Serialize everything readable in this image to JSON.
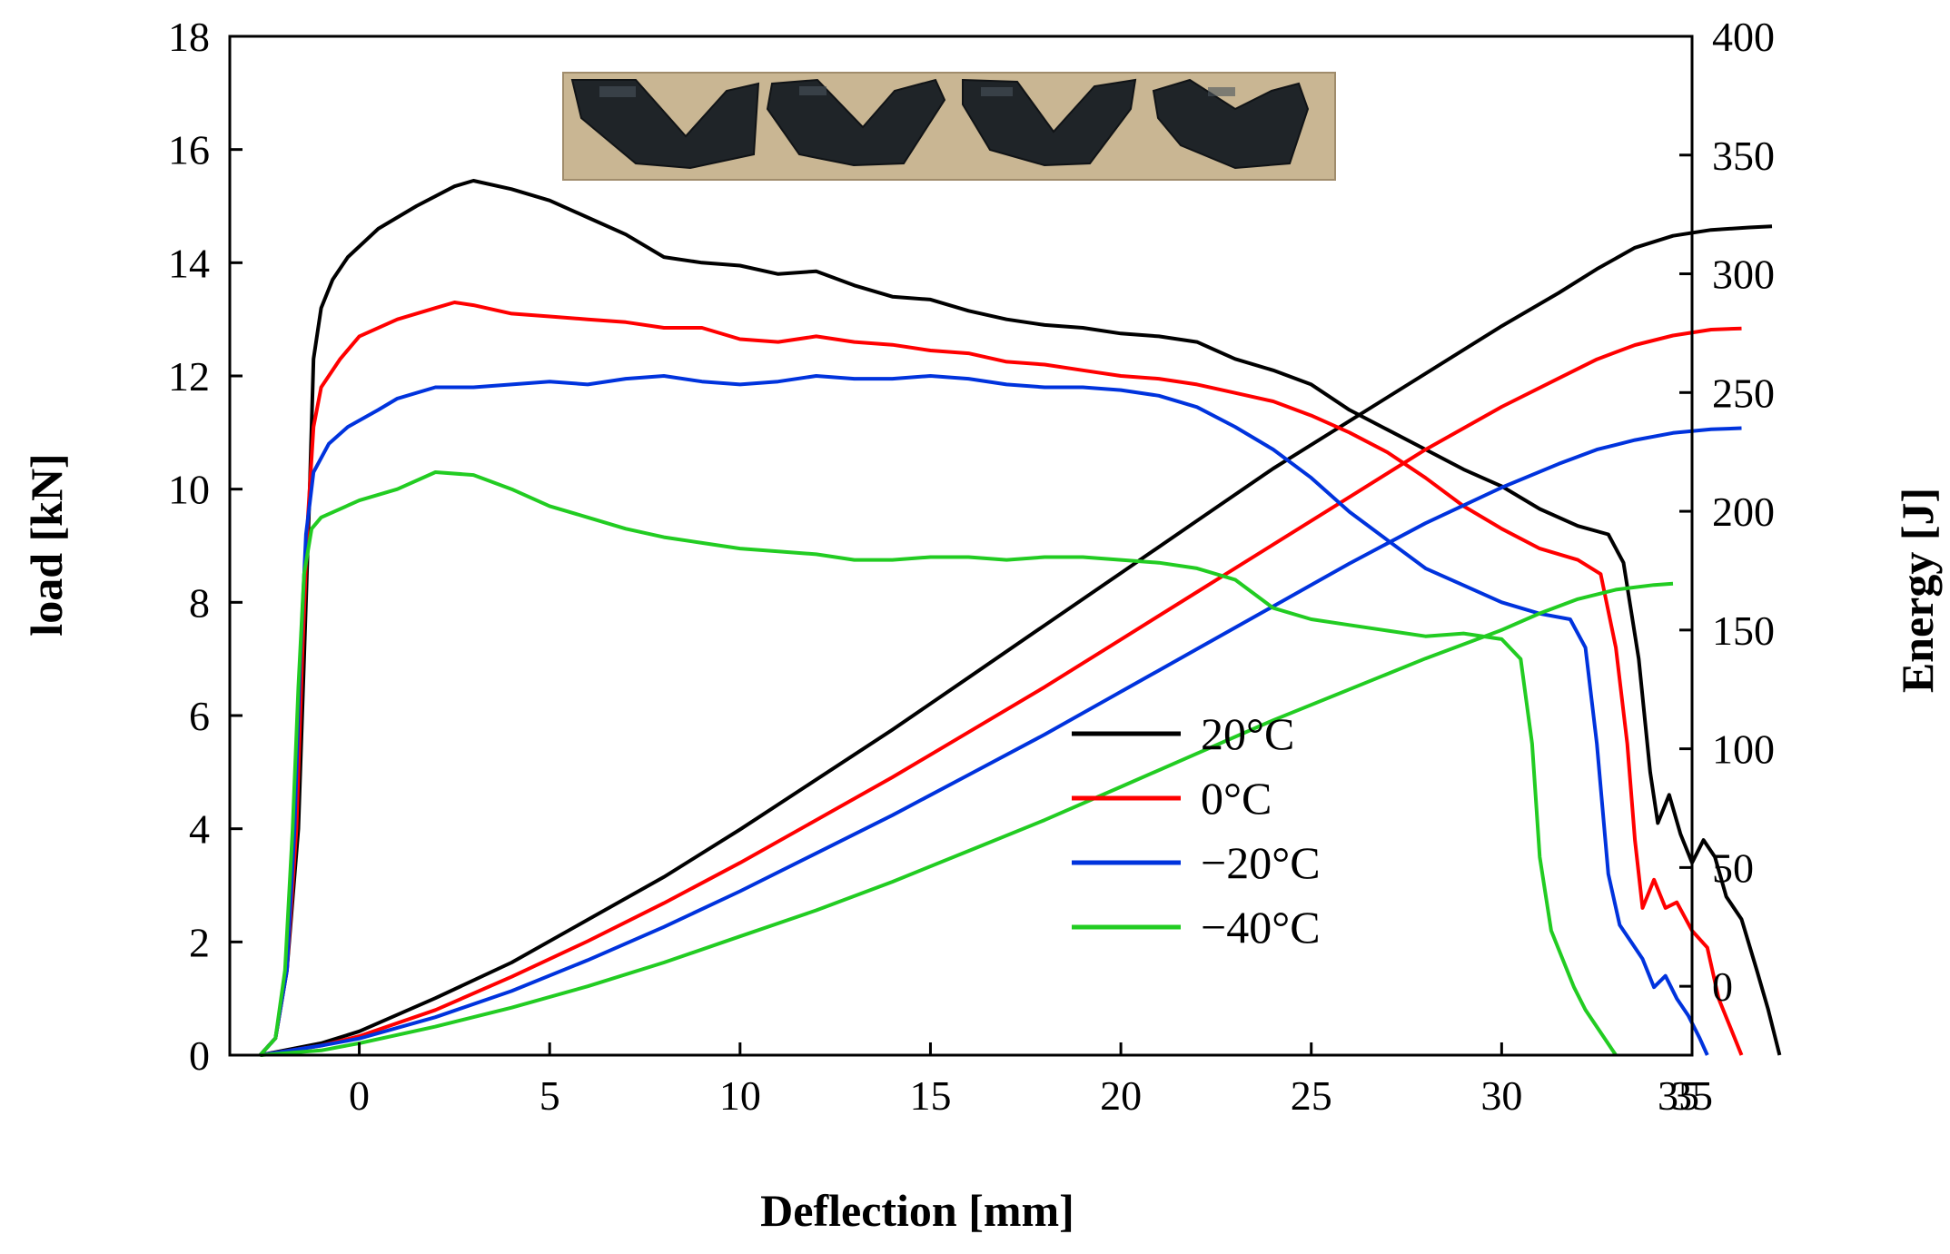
{
  "chart_data": {
    "type": "line",
    "xlabel": "Deflection [mm]",
    "ylabel": "load [kN]",
    "y2label": "Energy [J]",
    "xlim": [
      -3.4,
      35
    ],
    "ylim": [
      0,
      18
    ],
    "y2lim": [
      -29,
      400
    ],
    "x_ticks": [
      "0",
      "5",
      "10",
      "15",
      "20",
      "25",
      "30",
      "35",
      "35"
    ],
    "y_ticks": [
      "0",
      "2",
      "4",
      "6",
      "8",
      "10",
      "12",
      "14",
      "16",
      "18"
    ],
    "y2_ticks": [
      "0",
      "50",
      "100",
      "150",
      "200",
      "250",
      "300",
      "350",
      "400"
    ],
    "legend_position": "center-right",
    "inset_photo": "four fractured V-notch Charpy specimens",
    "series": [
      {
        "name": "20°C",
        "color": "#000000",
        "load": [
          [
            -2.6,
            0
          ],
          [
            -2.2,
            0.3
          ],
          [
            -1.9,
            1.5
          ],
          [
            -1.6,
            4
          ],
          [
            -1.45,
            7
          ],
          [
            -1.3,
            10
          ],
          [
            -1.2,
            12.3
          ],
          [
            -1,
            13.2
          ],
          [
            -0.7,
            13.7
          ],
          [
            -0.3,
            14.1
          ],
          [
            0.5,
            14.6
          ],
          [
            1.5,
            15.0
          ],
          [
            2.5,
            15.35
          ],
          [
            3,
            15.45
          ],
          [
            4,
            15.3
          ],
          [
            5,
            15.1
          ],
          [
            6,
            14.8
          ],
          [
            7,
            14.5
          ],
          [
            8,
            14.1
          ],
          [
            9,
            14.0
          ],
          [
            10,
            13.95
          ],
          [
            11,
            13.8
          ],
          [
            12,
            13.85
          ],
          [
            13,
            13.6
          ],
          [
            14,
            13.4
          ],
          [
            15,
            13.35
          ],
          [
            16,
            13.15
          ],
          [
            17,
            13.0
          ],
          [
            18,
            12.9
          ],
          [
            19,
            12.85
          ],
          [
            20,
            12.75
          ],
          [
            21,
            12.7
          ],
          [
            22,
            12.6
          ],
          [
            23,
            12.3
          ],
          [
            24,
            12.1
          ],
          [
            25,
            11.85
          ],
          [
            26,
            11.4
          ],
          [
            27,
            11.05
          ],
          [
            28,
            10.7
          ],
          [
            29,
            10.35
          ],
          [
            30,
            10.05
          ],
          [
            31,
            9.65
          ],
          [
            32,
            9.35
          ],
          [
            32.8,
            9.2
          ],
          [
            33.2,
            8.7
          ],
          [
            33.6,
            7.0
          ],
          [
            33.9,
            5.0
          ],
          [
            34.1,
            4.1
          ],
          [
            34.4,
            4.6
          ],
          [
            34.7,
            3.9
          ],
          [
            35,
            3.4
          ],
          [
            35.3,
            3.8
          ],
          [
            35.6,
            3.5
          ],
          [
            35.9,
            2.8
          ],
          [
            36.3,
            2.4
          ],
          [
            36.7,
            1.5
          ],
          [
            37,
            0.8
          ],
          [
            37.3,
            0
          ]
        ],
        "energy": [
          [
            -2.6,
            -29
          ],
          [
            -1,
            -24
          ],
          [
            0,
            -19
          ],
          [
            2,
            -5
          ],
          [
            4,
            10
          ],
          [
            6,
            28
          ],
          [
            8,
            46
          ],
          [
            10,
            66
          ],
          [
            12,
            87
          ],
          [
            14,
            108
          ],
          [
            16,
            130
          ],
          [
            18,
            152
          ],
          [
            20,
            174
          ],
          [
            22,
            196
          ],
          [
            24,
            218
          ],
          [
            26,
            238
          ],
          [
            28,
            258
          ],
          [
            30,
            278
          ],
          [
            31.5,
            292
          ],
          [
            32.5,
            302
          ],
          [
            33.5,
            311
          ],
          [
            34.5,
            316
          ],
          [
            35.5,
            318.5
          ],
          [
            36.5,
            319.5
          ],
          [
            37.1,
            320
          ]
        ]
      },
      {
        "name": "0°C",
        "color": "#ff0000",
        "load": [
          [
            -2.6,
            0
          ],
          [
            -2.2,
            0.3
          ],
          [
            -1.9,
            1.5
          ],
          [
            -1.65,
            4
          ],
          [
            -1.5,
            7
          ],
          [
            -1.35,
            9.5
          ],
          [
            -1.2,
            11.1
          ],
          [
            -1,
            11.8
          ],
          [
            -0.5,
            12.3
          ],
          [
            0,
            12.7
          ],
          [
            1,
            13.0
          ],
          [
            2,
            13.2
          ],
          [
            2.5,
            13.3
          ],
          [
            3,
            13.25
          ],
          [
            4,
            13.1
          ],
          [
            5,
            13.05
          ],
          [
            6,
            13.0
          ],
          [
            7,
            12.95
          ],
          [
            8,
            12.85
          ],
          [
            9,
            12.85
          ],
          [
            10,
            12.65
          ],
          [
            11,
            12.6
          ],
          [
            12,
            12.7
          ],
          [
            13,
            12.6
          ],
          [
            14,
            12.55
          ],
          [
            15,
            12.45
          ],
          [
            16,
            12.4
          ],
          [
            17,
            12.25
          ],
          [
            18,
            12.2
          ],
          [
            19,
            12.1
          ],
          [
            20,
            12.0
          ],
          [
            21,
            11.95
          ],
          [
            22,
            11.85
          ],
          [
            23,
            11.7
          ],
          [
            24,
            11.55
          ],
          [
            25,
            11.3
          ],
          [
            26,
            11.0
          ],
          [
            27,
            10.65
          ],
          [
            28,
            10.2
          ],
          [
            29,
            9.7
          ],
          [
            30,
            9.3
          ],
          [
            31,
            8.95
          ],
          [
            32,
            8.75
          ],
          [
            32.6,
            8.5
          ],
          [
            33,
            7.2
          ],
          [
            33.3,
            5.5
          ],
          [
            33.5,
            3.8
          ],
          [
            33.7,
            2.6
          ],
          [
            34,
            3.1
          ],
          [
            34.3,
            2.6
          ],
          [
            34.6,
            2.7
          ],
          [
            35,
            2.2
          ],
          [
            35.4,
            1.9
          ],
          [
            35.7,
            1.0
          ],
          [
            36,
            0.5
          ],
          [
            36.3,
            0
          ]
        ],
        "energy": [
          [
            -2.6,
            -29
          ],
          [
            -1,
            -25
          ],
          [
            0,
            -21
          ],
          [
            2,
            -10
          ],
          [
            4,
            4
          ],
          [
            6,
            19
          ],
          [
            8,
            35
          ],
          [
            10,
            52
          ],
          [
            12,
            70
          ],
          [
            14,
            88
          ],
          [
            16,
            107
          ],
          [
            18,
            126
          ],
          [
            20,
            146
          ],
          [
            22,
            166
          ],
          [
            24,
            186
          ],
          [
            26,
            206
          ],
          [
            28,
            226
          ],
          [
            30,
            244
          ],
          [
            31.5,
            256
          ],
          [
            32.5,
            264
          ],
          [
            33.5,
            270
          ],
          [
            34.5,
            274
          ],
          [
            35.5,
            276.5
          ],
          [
            36.3,
            277
          ]
        ]
      },
      {
        "name": "−20°C",
        "color": "#0033dd",
        "load": [
          [
            -2.6,
            0
          ],
          [
            -2.2,
            0.3
          ],
          [
            -1.9,
            1.5
          ],
          [
            -1.7,
            4
          ],
          [
            -1.55,
            7
          ],
          [
            -1.4,
            9.2
          ],
          [
            -1.2,
            10.3
          ],
          [
            -0.8,
            10.8
          ],
          [
            -0.3,
            11.1
          ],
          [
            0.5,
            11.4
          ],
          [
            1,
            11.6
          ],
          [
            2,
            11.8
          ],
          [
            3,
            11.8
          ],
          [
            4,
            11.85
          ],
          [
            5,
            11.9
          ],
          [
            6,
            11.85
          ],
          [
            7,
            11.95
          ],
          [
            8,
            12.0
          ],
          [
            9,
            11.9
          ],
          [
            10,
            11.85
          ],
          [
            11,
            11.9
          ],
          [
            12,
            12.0
          ],
          [
            13,
            11.95
          ],
          [
            14,
            11.95
          ],
          [
            15,
            12.0
          ],
          [
            16,
            11.95
          ],
          [
            17,
            11.85
          ],
          [
            18,
            11.8
          ],
          [
            19,
            11.8
          ],
          [
            20,
            11.75
          ],
          [
            21,
            11.65
          ],
          [
            22,
            11.45
          ],
          [
            23,
            11.1
          ],
          [
            24,
            10.7
          ],
          [
            25,
            10.2
          ],
          [
            26,
            9.6
          ],
          [
            27,
            9.1
          ],
          [
            28,
            8.6
          ],
          [
            29,
            8.3
          ],
          [
            30,
            8.0
          ],
          [
            31,
            7.8
          ],
          [
            31.8,
            7.7
          ],
          [
            32.2,
            7.2
          ],
          [
            32.5,
            5.5
          ],
          [
            32.8,
            3.2
          ],
          [
            33.1,
            2.3
          ],
          [
            33.4,
            2.0
          ],
          [
            33.7,
            1.7
          ],
          [
            34,
            1.2
          ],
          [
            34.3,
            1.4
          ],
          [
            34.6,
            1.0
          ],
          [
            34.9,
            0.7
          ],
          [
            35.2,
            0.3
          ],
          [
            35.4,
            0
          ]
        ],
        "energy": [
          [
            -2.6,
            -29
          ],
          [
            -1,
            -25
          ],
          [
            0,
            -22
          ],
          [
            2,
            -13
          ],
          [
            4,
            -2
          ],
          [
            6,
            11
          ],
          [
            8,
            25
          ],
          [
            10,
            40
          ],
          [
            12,
            56
          ],
          [
            14,
            72
          ],
          [
            16,
            89
          ],
          [
            18,
            106
          ],
          [
            20,
            124
          ],
          [
            22,
            142
          ],
          [
            24,
            160
          ],
          [
            26,
            178
          ],
          [
            28,
            195
          ],
          [
            30,
            210
          ],
          [
            31.5,
            220
          ],
          [
            32.5,
            226
          ],
          [
            33.5,
            230
          ],
          [
            34.5,
            233
          ],
          [
            35.5,
            234.5
          ],
          [
            36.3,
            235
          ]
        ]
      },
      {
        "name": "−40°C",
        "color": "#22cc22",
        "load": [
          [
            -2.6,
            0
          ],
          [
            -2.2,
            0.3
          ],
          [
            -1.95,
            1.5
          ],
          [
            -1.75,
            4
          ],
          [
            -1.6,
            6.5
          ],
          [
            -1.45,
            8.5
          ],
          [
            -1.25,
            9.3
          ],
          [
            -1,
            9.5
          ],
          [
            0,
            9.8
          ],
          [
            1,
            10.0
          ],
          [
            2,
            10.3
          ],
          [
            3,
            10.25
          ],
          [
            4,
            10.0
          ],
          [
            5,
            9.7
          ],
          [
            6,
            9.5
          ],
          [
            7,
            9.3
          ],
          [
            8,
            9.15
          ],
          [
            9,
            9.05
          ],
          [
            10,
            8.95
          ],
          [
            11,
            8.9
          ],
          [
            12,
            8.85
          ],
          [
            13,
            8.75
          ],
          [
            14,
            8.75
          ],
          [
            15,
            8.8
          ],
          [
            16,
            8.8
          ],
          [
            17,
            8.75
          ],
          [
            18,
            8.8
          ],
          [
            19,
            8.8
          ],
          [
            20,
            8.75
          ],
          [
            21,
            8.7
          ],
          [
            22,
            8.6
          ],
          [
            23,
            8.4
          ],
          [
            24,
            7.9
          ],
          [
            25,
            7.7
          ],
          [
            26,
            7.6
          ],
          [
            27,
            7.5
          ],
          [
            28,
            7.4
          ],
          [
            29,
            7.45
          ],
          [
            30,
            7.35
          ],
          [
            30.5,
            7.0
          ],
          [
            30.8,
            5.5
          ],
          [
            31,
            3.5
          ],
          [
            31.3,
            2.2
          ],
          [
            31.6,
            1.7
          ],
          [
            31.9,
            1.2
          ],
          [
            32.2,
            0.8
          ],
          [
            32.6,
            0.4
          ],
          [
            33,
            0
          ]
        ],
        "energy": [
          [
            -2.6,
            -29
          ],
          [
            -1,
            -27
          ],
          [
            0,
            -24
          ],
          [
            2,
            -17
          ],
          [
            4,
            -9
          ],
          [
            6,
            0
          ],
          [
            8,
            10
          ],
          [
            10,
            21
          ],
          [
            12,
            32
          ],
          [
            14,
            44
          ],
          [
            16,
            57
          ],
          [
            18,
            70
          ],
          [
            20,
            84
          ],
          [
            22,
            98
          ],
          [
            24,
            112
          ],
          [
            26,
            125
          ],
          [
            28,
            138
          ],
          [
            30,
            150
          ],
          [
            31,
            157
          ],
          [
            32,
            163
          ],
          [
            33,
            167
          ],
          [
            34,
            169
          ],
          [
            34.5,
            169.5
          ]
        ]
      }
    ]
  }
}
